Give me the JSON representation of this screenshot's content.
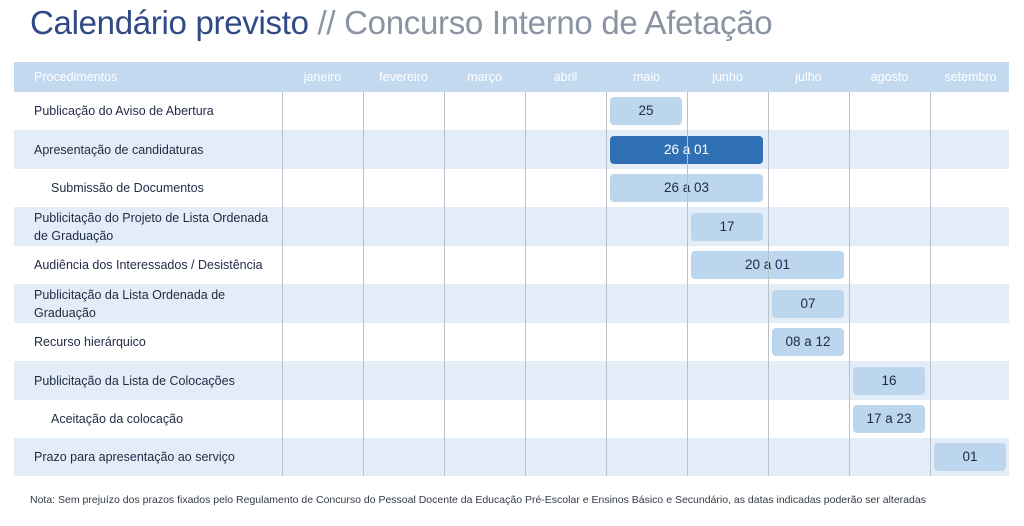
{
  "title": {
    "main": "Calendário previsto",
    "separator": "//",
    "subtitle": "Concurso Interno de Afetação"
  },
  "header": {
    "procedures_label": "Procedimentos",
    "months": [
      "janeiro",
      "fevereiro",
      "março",
      "abril",
      "maio",
      "junho",
      "julho",
      "agosto",
      "setembro"
    ]
  },
  "rows": [
    {
      "label": "Publicação do Aviso de Abertura",
      "indent": false,
      "bar": {
        "text": "25",
        "start_month": 4,
        "end_month": 4,
        "highlight": false
      }
    },
    {
      "label": "Apresentação de candidaturas",
      "indent": false,
      "bar": {
        "text": "26 a 01",
        "start_month": 4,
        "end_month": 5,
        "highlight": true
      }
    },
    {
      "label": "Submissão de Documentos",
      "indent": true,
      "bar": {
        "text": "26 a 03",
        "start_month": 4,
        "end_month": 5,
        "highlight": false
      }
    },
    {
      "label": "Publicitação do Projeto de Lista Ordenada de Graduação",
      "indent": false,
      "bar": {
        "text": "17",
        "start_month": 5,
        "end_month": 5,
        "highlight": false
      }
    },
    {
      "label": "Audiência dos Interessados / Desistência",
      "indent": false,
      "bar": {
        "text": "20 a 01",
        "start_month": 5,
        "end_month": 6,
        "highlight": false
      }
    },
    {
      "label": "Publicitação da Lista Ordenada de Graduação",
      "indent": false,
      "bar": {
        "text": "07",
        "start_month": 6,
        "end_month": 6,
        "highlight": false
      }
    },
    {
      "label": "Recurso hierárquico",
      "indent": false,
      "bar": {
        "text": "08 a 12",
        "start_month": 6,
        "end_month": 6,
        "highlight": false
      }
    },
    {
      "label": "Publicitação da Lista de Colocações",
      "indent": false,
      "bar": {
        "text": "16",
        "start_month": 7,
        "end_month": 7,
        "highlight": false
      }
    },
    {
      "label": "Aceitação da colocação",
      "indent": true,
      "bar": {
        "text": "17 a 23",
        "start_month": 7,
        "end_month": 7,
        "highlight": false
      }
    },
    {
      "label": "Prazo para apresentação ao serviço",
      "indent": false,
      "bar": {
        "text": "01",
        "start_month": 8,
        "end_month": 8,
        "highlight": false
      }
    }
  ],
  "note": "Nota: Sem prejuízo dos prazos fixados pelo Regulamento de Concurso do Pessoal Docente da Educação Pré-Escolar e Ensinos Básico e Secundário, as datas indicadas poderão ser alteradas",
  "colors": {
    "header": "#c3d9f0",
    "row_alt": "#e3edf8",
    "bar": "#bcd6ee",
    "bar_highlight": "#2f6fb3",
    "title": "#2f4a86"
  }
}
